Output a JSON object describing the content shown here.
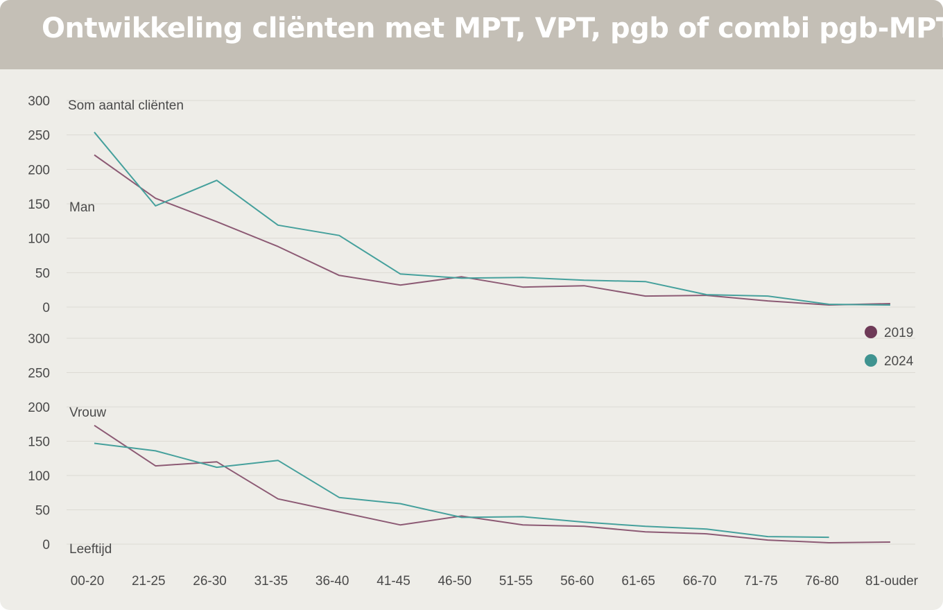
{
  "title": "Ontwikkeling cliënten met MPT, VPT, pgb of combi pgb-MPT",
  "chart_data": {
    "type": "line",
    "categories": [
      "00-20",
      "21-25",
      "26-30",
      "31-35",
      "36-40",
      "41-45",
      "46-50",
      "51-55",
      "56-60",
      "61-65",
      "66-70",
      "71-75",
      "76-80",
      "81-ouder"
    ],
    "ylabel": "Som aantal cliënten",
    "xlabel": "Leeftijd",
    "legend": {
      "placement": "right",
      "items": [
        {
          "name": "2019",
          "color": "#6e3a57"
        },
        {
          "name": "2024",
          "color": "#3f9390"
        }
      ]
    },
    "panels": [
      {
        "label": "Man",
        "ylim": [
          0,
          300
        ],
        "yticks": [
          "300",
          "250",
          "200",
          "150",
          "100",
          "50",
          "0"
        ],
        "series": [
          {
            "name": "2019",
            "color": "#8c5a74",
            "values": [
              221,
              158,
              124,
              88,
              46,
              32,
              44,
              29,
              31,
              16,
              17,
              9,
              3,
              5
            ]
          },
          {
            "name": "2024",
            "color": "#45a09c",
            "values": [
              254,
              147,
              184,
              119,
              104,
              48,
              42,
              43,
              39,
              37,
              18,
              16,
              4,
              3
            ]
          }
        ]
      },
      {
        "label": "Vrouw",
        "ylim": [
          0,
          300
        ],
        "yticks": [
          "300",
          "250",
          "200",
          "150",
          "100",
          "50",
          "0"
        ],
        "series": [
          {
            "name": "2019",
            "color": "#8c5a74",
            "values": [
              173,
              114,
              120,
              66,
              47,
              28,
              41,
              28,
              26,
              18,
              15,
              6,
              2,
              3
            ]
          },
          {
            "name": "2024",
            "color": "#45a09c",
            "values": [
              147,
              136,
              112,
              122,
              68,
              59,
              39,
              40,
              32,
              26,
              22,
              11,
              10,
              null
            ]
          }
        ]
      }
    ]
  }
}
